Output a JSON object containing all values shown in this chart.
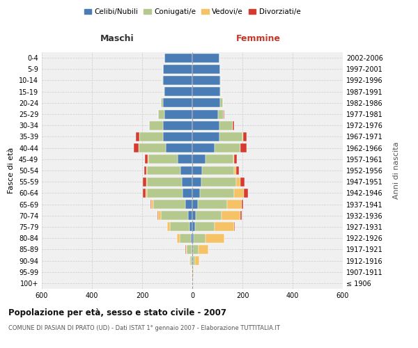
{
  "age_groups": [
    "100+",
    "95-99",
    "90-94",
    "85-89",
    "80-84",
    "75-79",
    "70-74",
    "65-69",
    "60-64",
    "55-59",
    "50-54",
    "45-49",
    "40-44",
    "35-39",
    "30-34",
    "25-29",
    "20-24",
    "15-19",
    "10-14",
    "5-9",
    "0-4"
  ],
  "birth_years": [
    "≤ 1906",
    "1907-1911",
    "1912-1916",
    "1917-1921",
    "1922-1926",
    "1927-1931",
    "1932-1936",
    "1937-1941",
    "1942-1946",
    "1947-1951",
    "1952-1956",
    "1957-1961",
    "1962-1966",
    "1967-1971",
    "1972-1976",
    "1977-1981",
    "1982-1986",
    "1987-1991",
    "1992-1996",
    "1997-2001",
    "2002-2006"
  ],
  "males": {
    "celibi": [
      0,
      1,
      2,
      3,
      5,
      12,
      18,
      28,
      38,
      42,
      48,
      58,
      105,
      118,
      118,
      112,
      118,
      112,
      118,
      118,
      112
    ],
    "coniugati": [
      0,
      1,
      5,
      18,
      45,
      78,
      108,
      128,
      143,
      138,
      132,
      118,
      108,
      93,
      53,
      23,
      8,
      2,
      1,
      0,
      0
    ],
    "vedovi": [
      0,
      1,
      3,
      5,
      10,
      10,
      10,
      8,
      5,
      4,
      2,
      1,
      1,
      1,
      0,
      0,
      0,
      0,
      0,
      0,
      0
    ],
    "divorziati": [
      0,
      0,
      0,
      1,
      1,
      1,
      2,
      4,
      10,
      12,
      10,
      12,
      20,
      12,
      2,
      1,
      0,
      0,
      0,
      0,
      0
    ]
  },
  "females": {
    "nubili": [
      0,
      1,
      2,
      4,
      6,
      12,
      15,
      22,
      30,
      36,
      40,
      52,
      88,
      108,
      108,
      103,
      112,
      112,
      112,
      112,
      108
    ],
    "coniugate": [
      0,
      2,
      8,
      20,
      48,
      78,
      103,
      118,
      138,
      138,
      128,
      112,
      103,
      93,
      53,
      23,
      10,
      2,
      1,
      0,
      0
    ],
    "vedove": [
      0,
      3,
      18,
      40,
      73,
      78,
      73,
      58,
      38,
      18,
      8,
      3,
      1,
      1,
      0,
      0,
      0,
      0,
      0,
      0,
      0
    ],
    "divorziate": [
      0,
      0,
      0,
      1,
      1,
      2,
      5,
      5,
      15,
      15,
      10,
      10,
      25,
      15,
      5,
      1,
      0,
      0,
      0,
      0,
      0
    ]
  },
  "colors": {
    "celibi": "#4a7db5",
    "coniugati": "#b5c98e",
    "vedovi": "#f5c265",
    "divorziati": "#d63b2f"
  },
  "legend_labels": [
    "Celibi/Nubili",
    "Coniugati/e",
    "Vedovi/e",
    "Divorziati/e"
  ],
  "title": "Popolazione per età, sesso e stato civile - 2007",
  "subtitle": "COMUNE DI PASIAN DI PRATO (UD) - Dati ISTAT 1° gennaio 2007 - Elaborazione TUTTITALIA.IT",
  "xlabel_left": "Maschi",
  "xlabel_right": "Femmine",
  "ylabel_left": "Fasce di età",
  "ylabel_right": "Anni di nascita",
  "xlim": 600,
  "bg_color": "#ffffff",
  "plot_bg": "#f0f0f0",
  "grid_color": "#cccccc",
  "bar_height": 0.8
}
